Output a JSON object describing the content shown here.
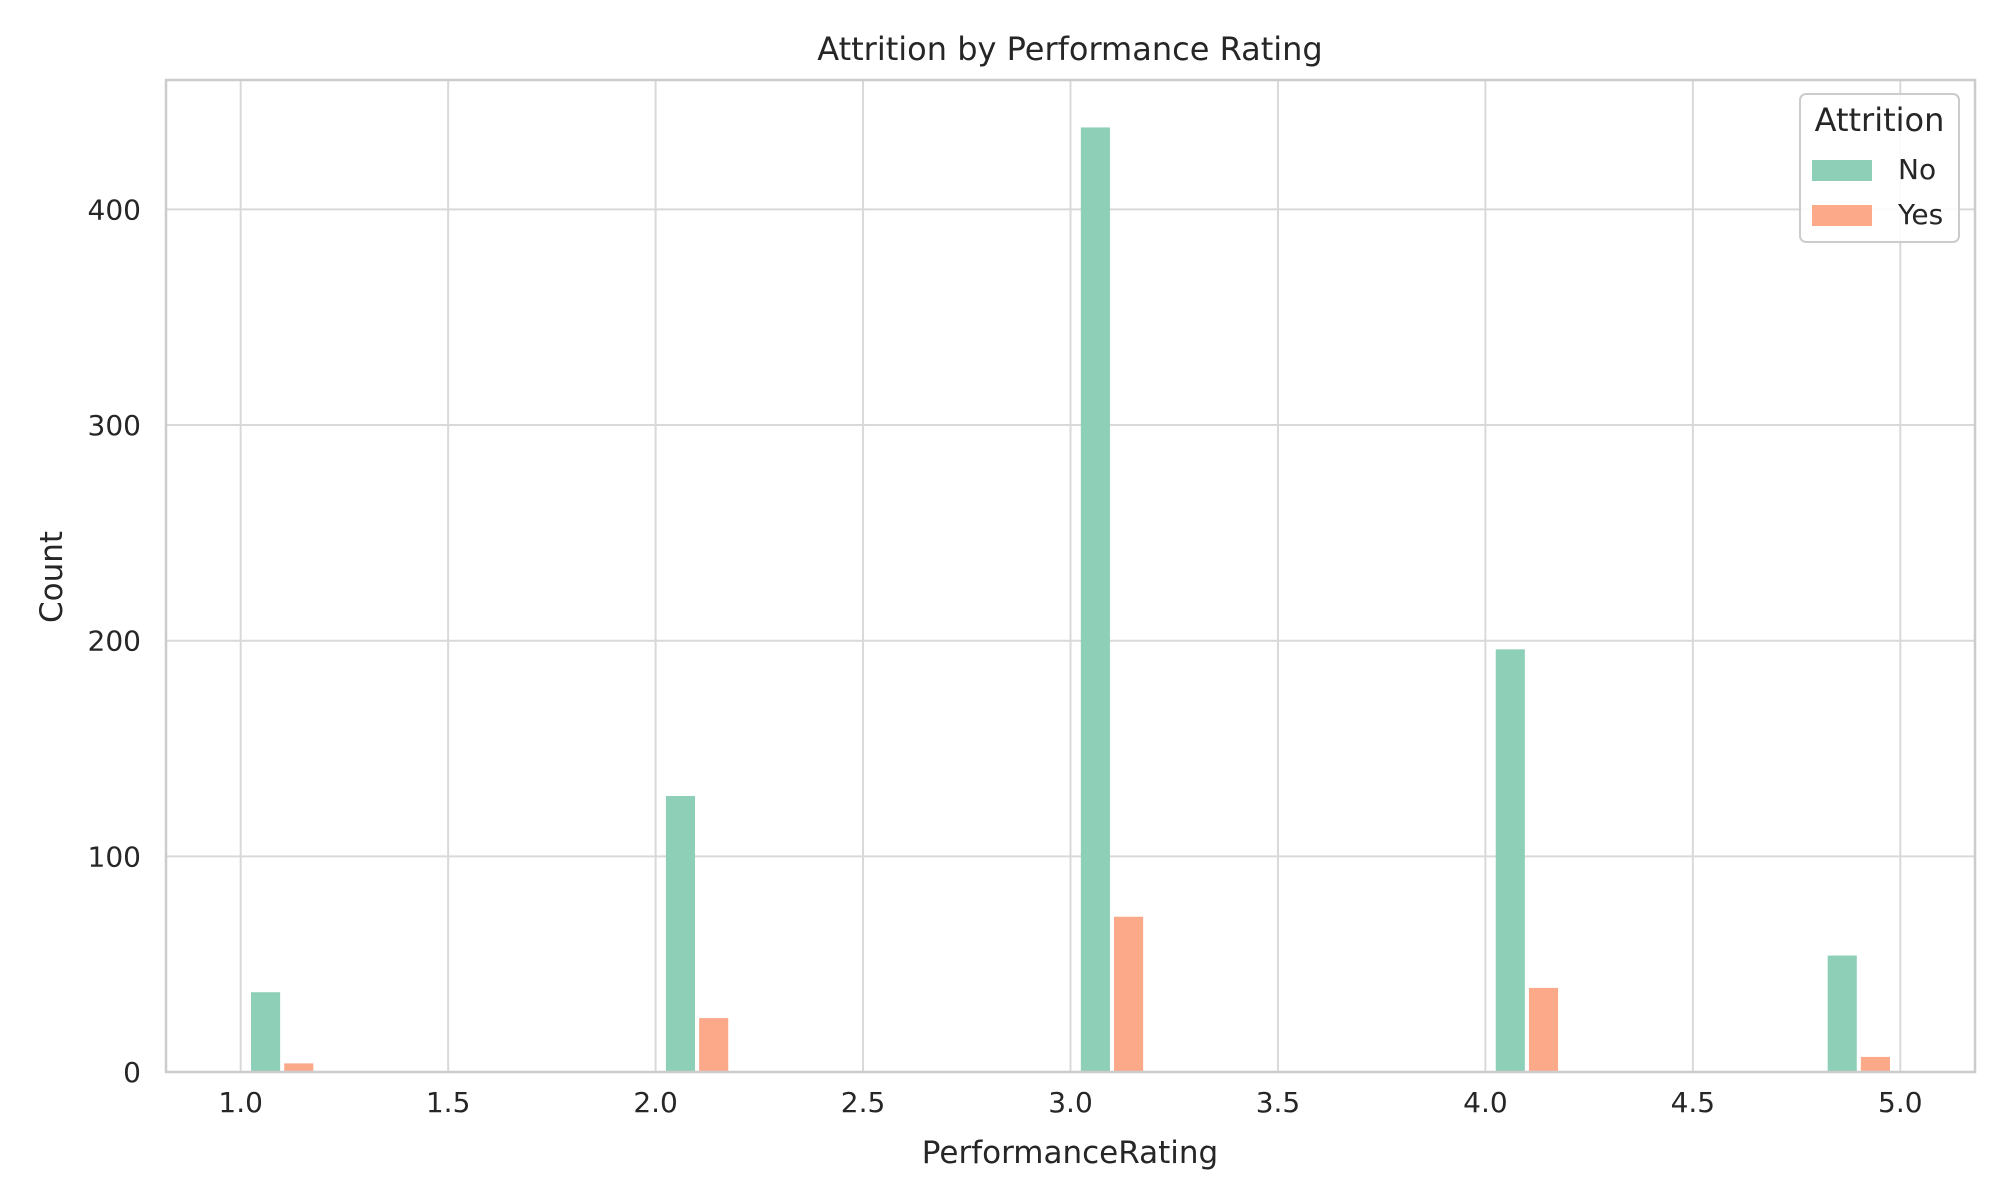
{
  "chart_data": {
    "type": "bar",
    "title": "Attrition by Performance Rating",
    "xlabel": "PerformanceRating",
    "ylabel": "Count",
    "xlim": [
      0.82,
      5.18
    ],
    "ylim": [
      0,
      460
    ],
    "x_ticks": [
      "1.0",
      "1.5",
      "2.0",
      "2.5",
      "3.0",
      "3.5",
      "4.0",
      "4.5",
      "5.0"
    ],
    "y_ticks": [
      "0",
      "100",
      "200",
      "300",
      "400"
    ],
    "grid": true,
    "legend": {
      "title": "Attrition",
      "placement": "top-right",
      "entries": [
        {
          "label": "No",
          "color": "#8ecfb8"
        },
        {
          "label": "Yes",
          "color": "#fca98a"
        }
      ]
    },
    "series": [
      {
        "name": "No",
        "color": "#8ecfb8",
        "points": [
          {
            "x": 1.06,
            "y": 37
          },
          {
            "x": 2.06,
            "y": 128
          },
          {
            "x": 3.06,
            "y": 438
          },
          {
            "x": 4.06,
            "y": 196
          },
          {
            "x": 4.86,
            "y": 54
          }
        ]
      },
      {
        "name": "Yes",
        "color": "#fca98a",
        "points": [
          {
            "x": 1.14,
            "y": 4
          },
          {
            "x": 2.14,
            "y": 25
          },
          {
            "x": 3.14,
            "y": 72
          },
          {
            "x": 4.14,
            "y": 39
          },
          {
            "x": 4.94,
            "y": 7
          }
        ]
      }
    ],
    "bin_width": 0.075
  }
}
